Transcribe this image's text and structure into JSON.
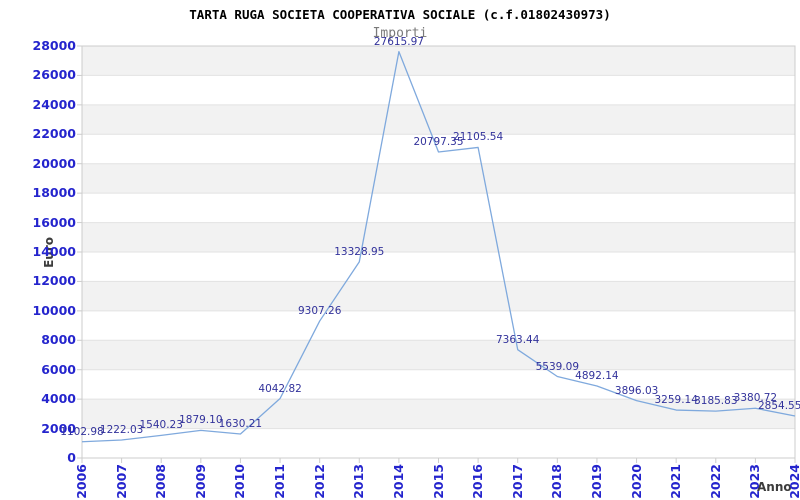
{
  "chart_data": {
    "type": "line",
    "title": "TARTA RUGA SOCIETA COOPERATIVA SOCIALE (c.f.01802430973)",
    "series_label": "Importi",
    "xlabel": "Anno",
    "ylabel": "Euro",
    "x": [
      "2006",
      "2007",
      "2008",
      "2009",
      "2010",
      "2011",
      "2012",
      "2013",
      "2014",
      "2015",
      "2016",
      "2017",
      "2018",
      "2019",
      "2020",
      "2021",
      "2022",
      "2023",
      "2024"
    ],
    "values": [
      1102.98,
      1222.03,
      1540.23,
      1879.1,
      1630.21,
      4042.82,
      9307.26,
      13328.95,
      27615.97,
      20797.35,
      21105.54,
      7363.44,
      5539.09,
      4892.14,
      3896.03,
      3259.14,
      3185.83,
      3380.72,
      2854.55
    ],
    "point_labels": [
      "1102.98",
      "1222.03",
      "1540.23",
      "1879.10",
      "1630.21",
      "4042.82",
      "9307.26",
      "13328.95",
      "27615.97",
      "20797.35",
      "21105.54",
      "7363.44",
      "5539.09",
      "4892.14",
      "3896.03",
      "3259.14",
      "3185.83",
      "3380.72",
      "2854.55"
    ],
    "yticks": [
      "0",
      "2000",
      "4000",
      "6000",
      "8000",
      "10000",
      "12000",
      "14000",
      "16000",
      "18000",
      "20000",
      "22000",
      "24000",
      "26000",
      "28000"
    ],
    "ylim": [
      0,
      28000
    ],
    "ytick_step": 2000,
    "grid": "horizontal alternating bands",
    "legend_position": "top-center",
    "colors": {
      "line": "#7fa9dd",
      "point_label": "#32329b",
      "tick_label": "#2424cd",
      "title": "#000000",
      "series_label": "#7a7a7a",
      "axis_title": "#3c3c3c",
      "band": "#f2f2f2",
      "gridline": "#e2e2e2",
      "border": "#cccccc",
      "background": "#ffffff"
    }
  }
}
